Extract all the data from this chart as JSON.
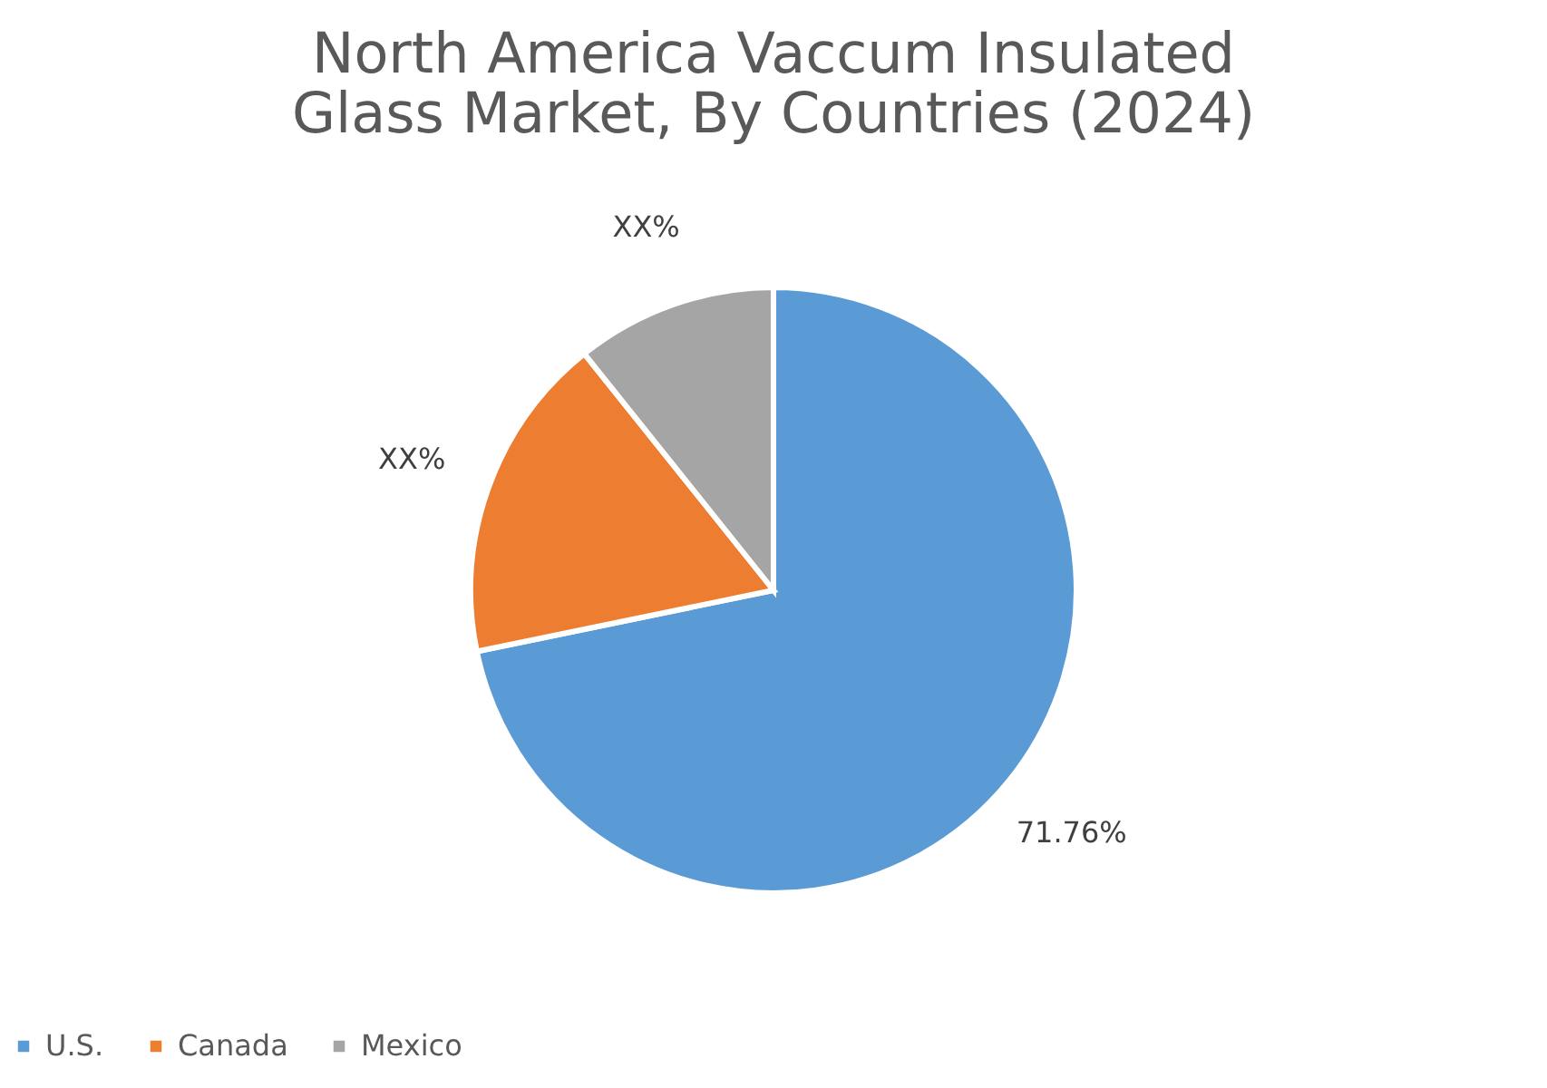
{
  "chart_data": {
    "type": "pie",
    "title": "North America Vaccum Insulated Glass Market, By Countries (2024)",
    "categories": [
      "U.S.",
      "Canada",
      "Mexico"
    ],
    "values": [
      71.76,
      17.5,
      10.74
    ],
    "colors": [
      "#5b9bd5",
      "#ed7d31",
      "#a5a5a5"
    ],
    "value_labels": [
      "71.76%",
      "XX%",
      "XX%"
    ],
    "legend": "bottom"
  }
}
